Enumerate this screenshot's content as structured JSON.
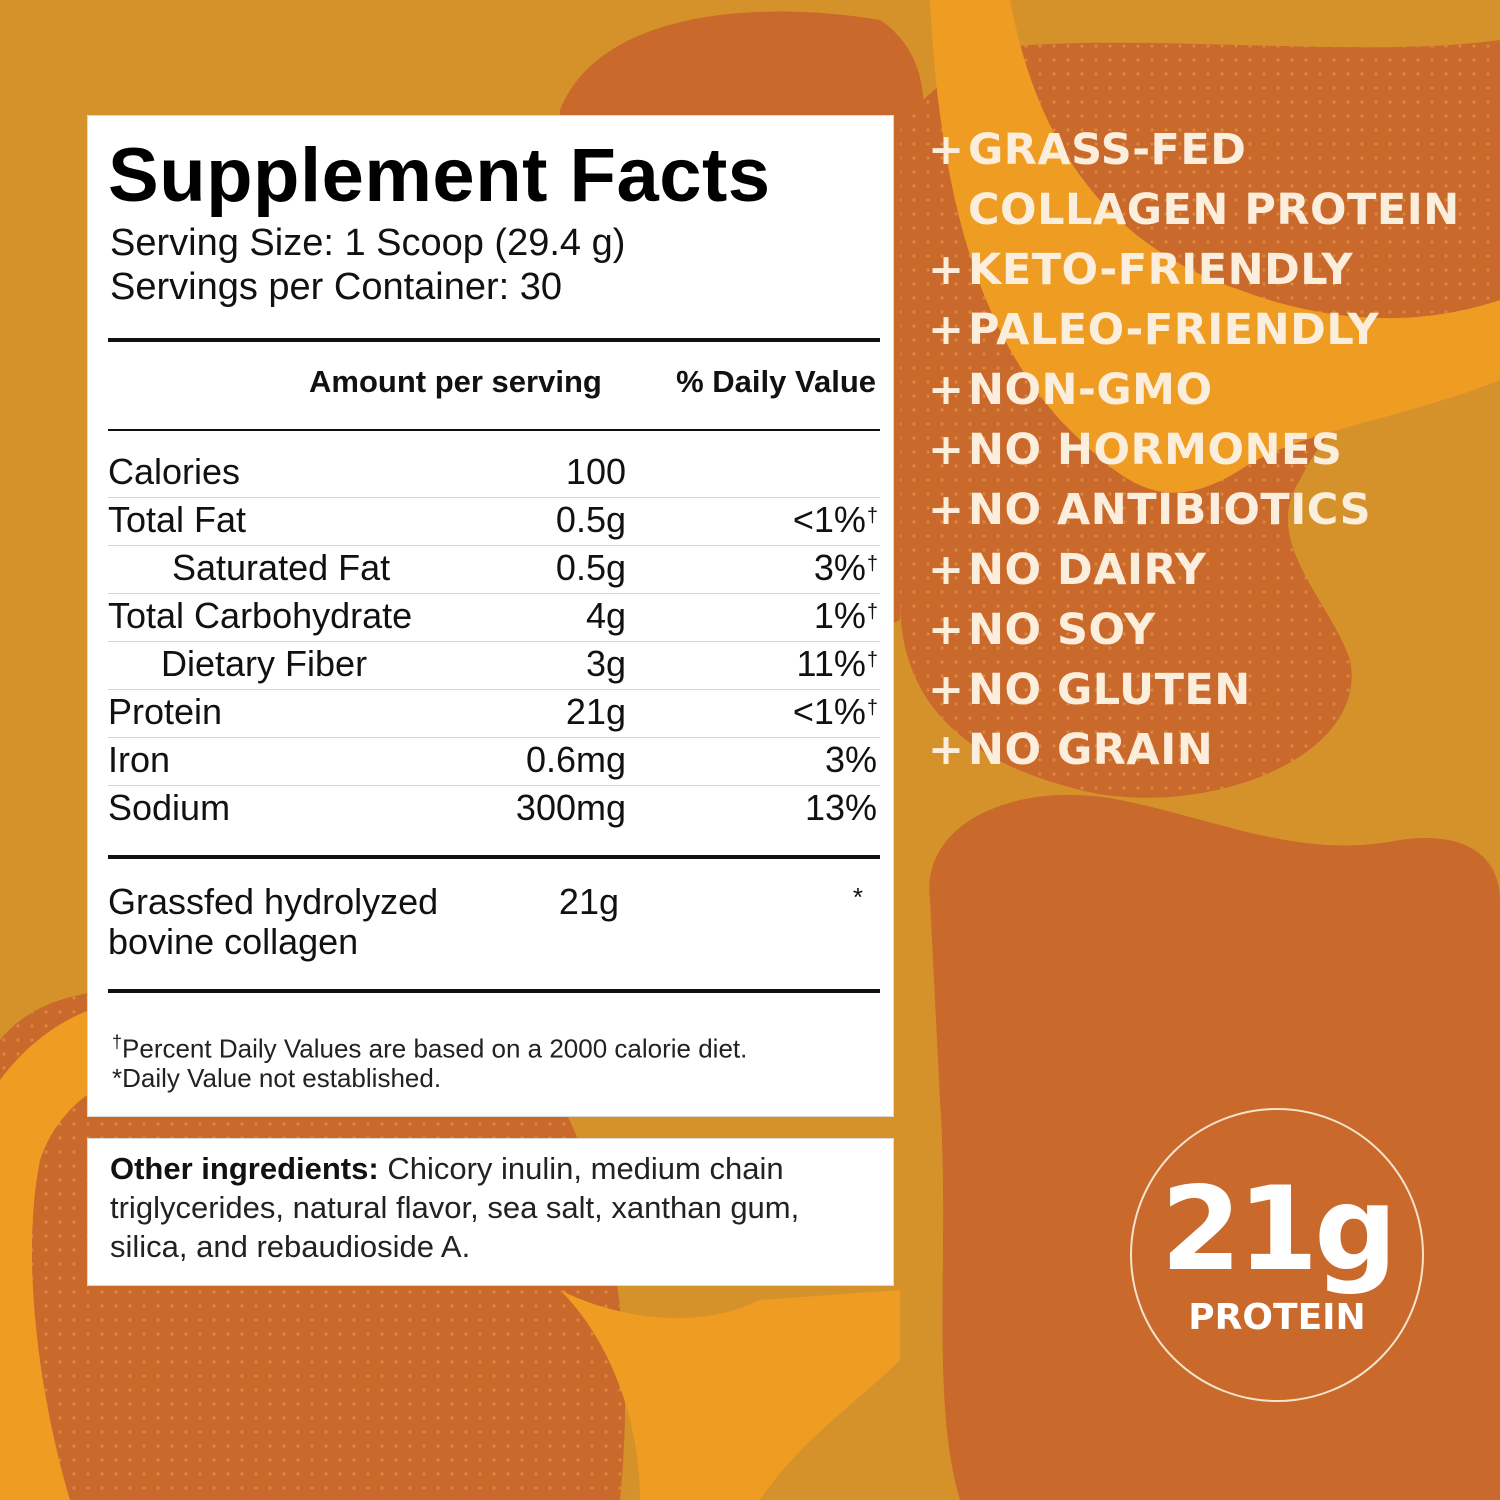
{
  "colors": {
    "background": "#D6922A",
    "blob": "#C9692C",
    "band": "#EF9D22",
    "claim_text": "#FCEEDC"
  },
  "facts": {
    "title": "Supplement Facts",
    "serving_size": "Serving Size: 1 Scoop (29.4 g)",
    "servings_per_container": "Servings per Container: 30",
    "header_amount": "Amount per serving",
    "header_dv": "% Daily Value",
    "rows": [
      {
        "name": "Calories",
        "amount": "100",
        "dv": "",
        "dagger": ""
      },
      {
        "name": "Total Fat",
        "amount": "0.5g",
        "dv": "<1%",
        "dagger": "†"
      },
      {
        "name": "Saturated Fat",
        "amount": "0.5g",
        "dv": "3%",
        "dagger": "†"
      },
      {
        "name": "Total Carbohydrate",
        "amount": "4g",
        "dv": "1%",
        "dagger": "†"
      },
      {
        "name": "Dietary Fiber",
        "amount": "3g",
        "dv": "11%",
        "dagger": "†"
      },
      {
        "name": "Protein",
        "amount": "21g",
        "dv": "<1%",
        "dagger": "†"
      },
      {
        "name": "Iron",
        "amount": "0.6mg",
        "dv": "3%",
        "dagger": ""
      },
      {
        "name": "Sodium",
        "amount": "300mg",
        "dv": "13%",
        "dagger": ""
      }
    ],
    "collagen": {
      "name": "Grassfed hydrolyzed bovine collagen",
      "amount": "21g",
      "dv": "*"
    },
    "footnote_dagger": "†",
    "footnote_1": "Percent Daily Values are based on a 2000 calorie diet.",
    "footnote_2": "*Daily Value not established."
  },
  "ingredients": {
    "label": "Other ingredients:",
    "text": " Chicory inulin, medium chain triglycerides, natural flavor, sea salt, xanthan gum, silica, and rebaudioside A."
  },
  "claims": {
    "plus": "+",
    "items": [
      {
        "line1": "GRASS-FED",
        "line2": "COLLAGEN PROTEIN"
      },
      {
        "line1": "KETO-FRIENDLY"
      },
      {
        "line1": "PALEO-FRIENDLY"
      },
      {
        "line1": "NON-GMO"
      },
      {
        "line1": "NO HORMONES"
      },
      {
        "line1": "NO ANTIBIOTICS"
      },
      {
        "line1": "NO DAIRY"
      },
      {
        "line1": "NO SOY"
      },
      {
        "line1": "NO GLUTEN"
      },
      {
        "line1": "NO GRAIN"
      }
    ]
  },
  "badge": {
    "value": "21g",
    "label": "PROTEIN"
  }
}
